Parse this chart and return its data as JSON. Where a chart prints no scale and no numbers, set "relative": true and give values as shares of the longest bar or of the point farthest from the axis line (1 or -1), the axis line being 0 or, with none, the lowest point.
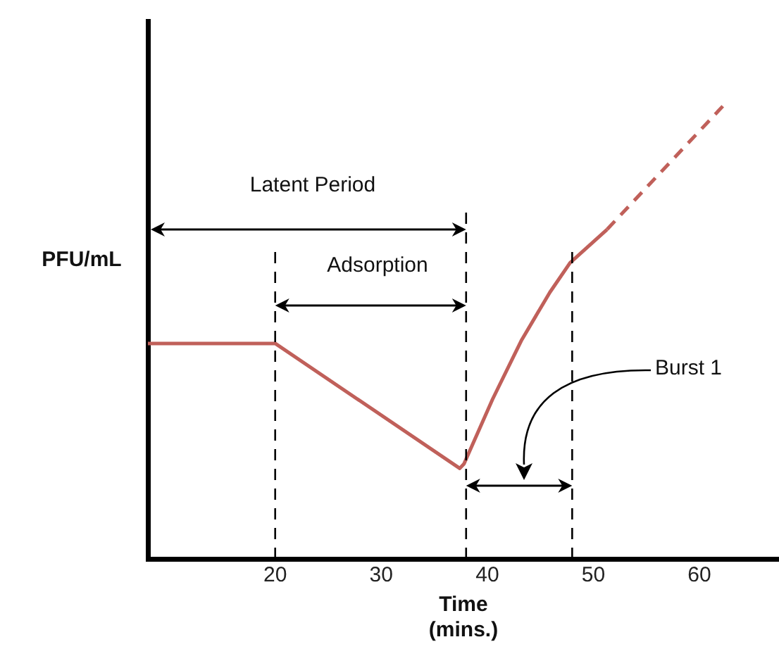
{
  "chart_data": {
    "type": "line",
    "relative": true,
    "xlabel": "Time\n(mins.)",
    "ylabel": "PFU/mL",
    "xlim": [
      8,
      67.5
    ],
    "xticks": [
      20,
      30,
      40,
      50,
      60
    ],
    "grid": false,
    "legend": false,
    "marker": "none",
    "series": [
      {
        "color": "#c0605a",
        "line_style": "solid",
        "x": [
          8,
          20,
          37.4,
          37.8,
          40.5,
          43.2,
          45.9,
          47.8,
          51.3
        ],
        "values": [
          0.476,
          0.476,
          0.2,
          0.21,
          0.353,
          0.482,
          0.589,
          0.654,
          0.728
        ]
      },
      {
        "color": "#c0605a",
        "line_style": "dashed",
        "x": [
          51.3,
          62.2
        ],
        "values": [
          0.728,
          1
        ]
      }
    ],
    "ref_lines": [
      {
        "axis": "x",
        "value": 20,
        "color": "#000000",
        "line_style": "dashed"
      },
      {
        "axis": "x",
        "value": 38,
        "color": "#000000",
        "line_style": "dashed"
      },
      {
        "axis": "x",
        "value": 48,
        "color": "#000000",
        "line_style": "dashed"
      }
    ],
    "annotations": [
      "Latent Period",
      "Adsorption",
      "Burst 1"
    ]
  }
}
